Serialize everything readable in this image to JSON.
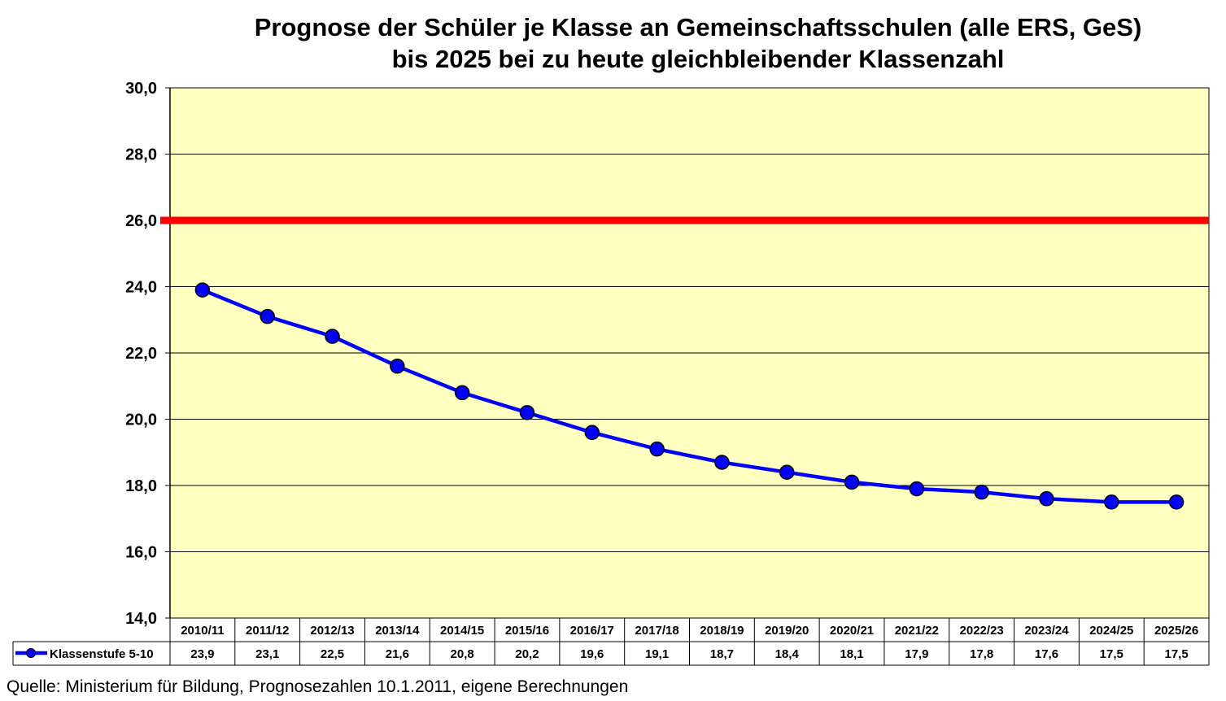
{
  "chart_data": {
    "type": "line",
    "title_lines": [
      "Prognose der Schüler je Klasse an Gemeinschaftsschulen (alle ERS, GeS)",
      "bis 2025 bei zu heute gleichbleibender Klassenzahl"
    ],
    "categories": [
      "2010/11",
      "2011/12",
      "2012/13",
      "2013/14",
      "2014/15",
      "2015/16",
      "2016/17",
      "2017/18",
      "2018/19",
      "2019/20",
      "2020/21",
      "2021/22",
      "2022/23",
      "2023/24",
      "2024/25",
      "2025/26"
    ],
    "series": [
      {
        "name": "Klassenstufe 5-10",
        "values": [
          23.9,
          23.1,
          22.5,
          21.6,
          20.8,
          20.2,
          19.6,
          19.1,
          18.7,
          18.4,
          18.1,
          17.9,
          17.8,
          17.6,
          17.5,
          17.5
        ],
        "value_labels": [
          "23,9",
          "23,1",
          "22,5",
          "21,6",
          "20,8",
          "20,2",
          "19,6",
          "19,1",
          "18,7",
          "18,4",
          "18,1",
          "17,9",
          "17,8",
          "17,6",
          "17,5",
          "17,5"
        ],
        "color": "#0000ff"
      }
    ],
    "reference_line": {
      "value": 26.0,
      "color": "#ff0000"
    },
    "ylim": [
      14,
      30
    ],
    "yticks": [
      14,
      16,
      18,
      20,
      22,
      24,
      26,
      28,
      30
    ],
    "ytick_labels": [
      "14,0",
      "16,0",
      "18,0",
      "20,0",
      "22,0",
      "24,0",
      "26,0",
      "28,0",
      "30,0"
    ],
    "grid": true,
    "plot_background": "#ffffc0",
    "data_table": true,
    "legend_placement": "data-table-row-header"
  },
  "footer": {
    "source": "Quelle: Ministerium für Bildung, Prognosezahlen 10.1.2011, eigene Berechnungen"
  }
}
